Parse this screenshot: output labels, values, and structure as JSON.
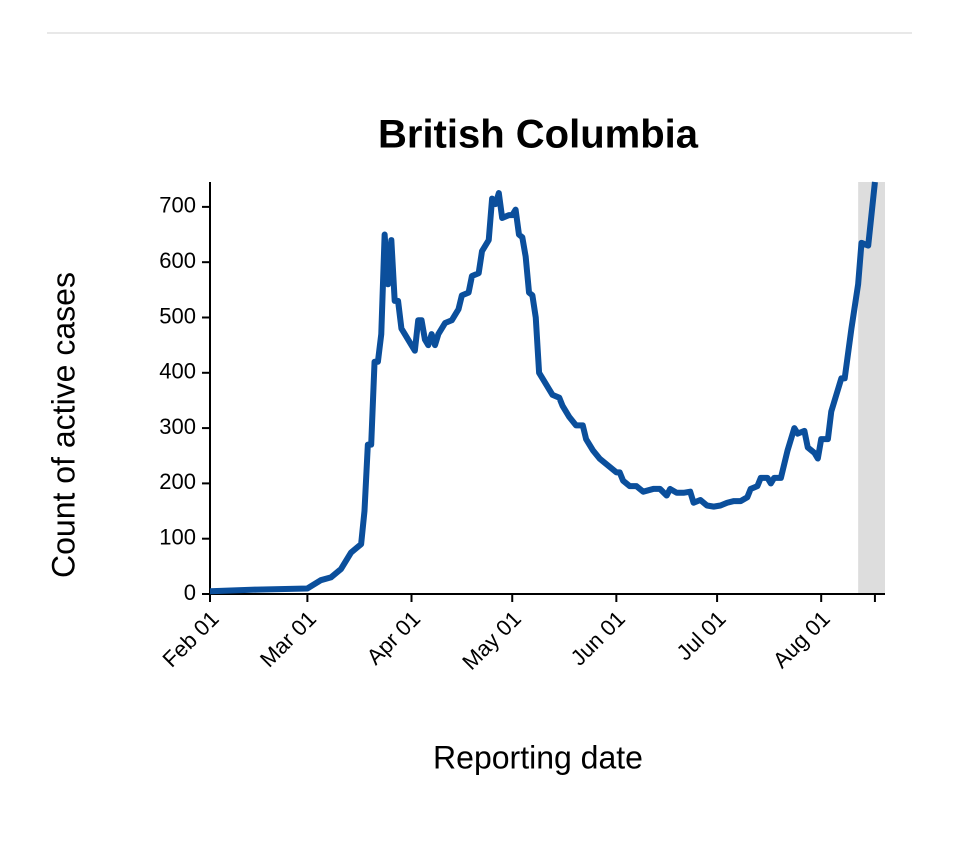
{
  "chart_data": {
    "type": "line",
    "title": "British Columbia",
    "xlabel": "Reporting date",
    "ylabel": "Count of active cases",
    "x": [
      "02-01",
      "02-15",
      "03-01",
      "03-05",
      "03-08",
      "03-11",
      "03-14",
      "03-16",
      "03-17",
      "03-18",
      "03-19",
      "03-20",
      "03-21",
      "03-22",
      "03-23",
      "03-24",
      "03-25",
      "03-26",
      "03-27",
      "03-28",
      "03-29",
      "03-30",
      "04-01",
      "04-02",
      "04-03",
      "04-04",
      "04-05",
      "04-06",
      "04-07",
      "04-08",
      "04-09",
      "04-11",
      "04-13",
      "04-15",
      "04-16",
      "04-18",
      "04-19",
      "04-21",
      "04-22",
      "04-24",
      "04-25",
      "04-26",
      "04-27",
      "04-28",
      "04-30",
      "05-01",
      "05-02",
      "05-03",
      "05-04",
      "05-05",
      "05-06",
      "05-07",
      "05-08",
      "05-09",
      "05-10",
      "05-12",
      "05-13",
      "05-15",
      "05-16",
      "05-18",
      "05-20",
      "05-22",
      "05-23",
      "05-25",
      "05-27",
      "05-29",
      "05-30",
      "06-01",
      "06-02",
      "06-03",
      "06-05",
      "06-07",
      "06-09",
      "06-12",
      "06-14",
      "06-16",
      "06-17",
      "06-19",
      "06-21",
      "06-23",
      "06-24",
      "06-26",
      "06-28",
      "06-30",
      "07-02",
      "07-04",
      "07-06",
      "07-08",
      "07-10",
      "07-11",
      "07-13",
      "07-14",
      "07-16",
      "07-17",
      "07-18",
      "07-20",
      "07-22",
      "07-24",
      "07-25",
      "07-27",
      "07-28",
      "07-30",
      "07-31",
      "08-01",
      "08-03",
      "08-04",
      "08-06",
      "08-07",
      "08-08",
      "08-10",
      "08-12",
      "08-13",
      "08-15",
      "08-17"
    ],
    "series": [
      {
        "name": "Active cases",
        "color": "#0b4f9c",
        "values": [
          5,
          8,
          10,
          25,
          30,
          45,
          75,
          85,
          90,
          150,
          270,
          270,
          420,
          420,
          470,
          650,
          560,
          640,
          530,
          530,
          480,
          470,
          450,
          440,
          495,
          495,
          460,
          450,
          470,
          450,
          470,
          490,
          495,
          515,
          540,
          545,
          575,
          580,
          620,
          640,
          715,
          705,
          725,
          680,
          685,
          685,
          695,
          650,
          645,
          610,
          545,
          540,
          500,
          400,
          390,
          370,
          360,
          355,
          340,
          320,
          305,
          305,
          280,
          260,
          245,
          235,
          230,
          220,
          220,
          205,
          195,
          195,
          185,
          190,
          190,
          178,
          190,
          183,
          183,
          185,
          165,
          170,
          160,
          158,
          160,
          165,
          168,
          168,
          175,
          190,
          195,
          210,
          210,
          200,
          210,
          210,
          260,
          300,
          290,
          295,
          265,
          255,
          245,
          280,
          280,
          330,
          370,
          390,
          390,
          480,
          560,
          635,
          630,
          745
        ]
      }
    ],
    "xlim": [
      "02-01",
      "08-20"
    ],
    "xticks": [
      {
        "value": "02-01",
        "label": "Feb 01"
      },
      {
        "value": "03-01",
        "label": "Mar 01"
      },
      {
        "value": "04-01",
        "label": "Apr 01"
      },
      {
        "value": "05-01",
        "label": "May 01"
      },
      {
        "value": "06-01",
        "label": "Jun 01"
      },
      {
        "value": "07-01",
        "label": "Jul 01"
      },
      {
        "value": "08-01",
        "label": "Aug 01"
      },
      {
        "value": "08-17",
        "label": null
      }
    ],
    "ylim": [
      0,
      745
    ],
    "yticks": [
      0,
      100,
      200,
      300,
      400,
      500,
      600,
      700
    ],
    "shade": {
      "range": [
        "08-12",
        "08-20"
      ],
      "color": "#dddddd"
    }
  }
}
